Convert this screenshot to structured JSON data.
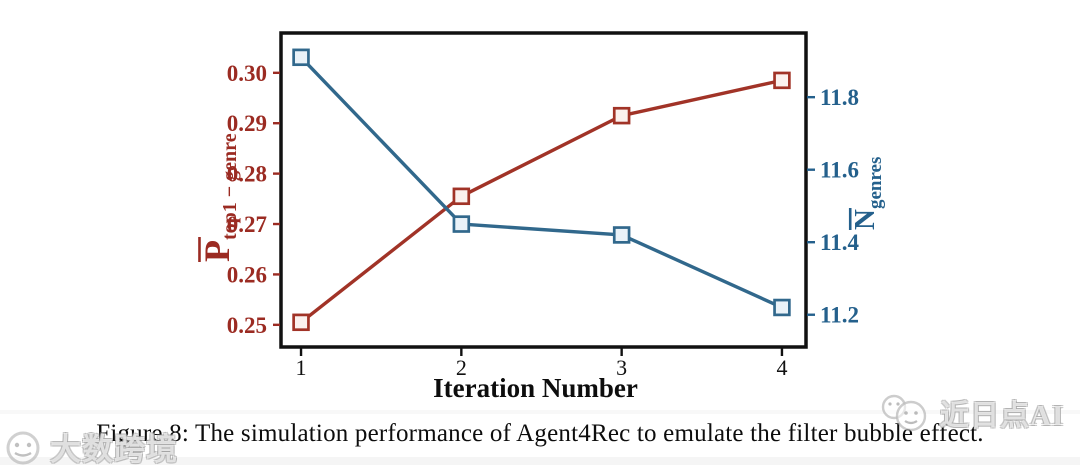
{
  "figure": {
    "caption": "Figure 8: The simulation performance of Agent4Rec to emulate the filter bubble effect."
  },
  "watermarks": {
    "left": {
      "text": "大数跨境",
      "logo": "camera-circle-logo-icon"
    },
    "right": {
      "text": "近日点AI",
      "logo": "double-smiley-faces-icon"
    }
  },
  "chart_data": {
    "type": "line",
    "x": [
      1,
      2,
      3,
      4
    ],
    "x_tick_labels": [
      "1",
      "2",
      "3",
      "4"
    ],
    "xlabel": "Iteration Number",
    "xlim": [
      0.875,
      4.15
    ],
    "grid": false,
    "legend": "none",
    "series": [
      {
        "name": "P̄_top1−genre",
        "axis": "left",
        "values": [
          0.2505,
          0.2755,
          0.2915,
          0.2985
        ],
        "color": "#A13327",
        "marker": "open-square",
        "marker_fill": "#FBF1EE"
      },
      {
        "name": "N̄_genres",
        "axis": "right",
        "values": [
          11.91,
          11.45,
          11.42,
          11.22
        ],
        "color": "#31688C",
        "marker": "open-square",
        "marker_fill": "#EAF2F8"
      }
    ],
    "left_axis": {
      "label_main": "P",
      "label_overline": true,
      "label_subscript": "top1 − genre",
      "ticks": [
        0.25,
        0.26,
        0.27,
        0.28,
        0.29,
        0.3
      ],
      "tick_labels": [
        "0.25",
        "0.26",
        "0.27",
        "0.28",
        "0.29",
        "0.30"
      ],
      "ylim": [
        0.2456,
        0.3079
      ],
      "color": "#9B2B22"
    },
    "right_axis": {
      "label_main": "N",
      "label_overline": true,
      "label_subscript": "genres",
      "ticks": [
        11.2,
        11.4,
        11.6,
        11.8
      ],
      "tick_labels": [
        "11.2",
        "11.4",
        "11.6",
        "11.8"
      ],
      "ylim": [
        11.111,
        11.977
      ],
      "color": "#24608C"
    },
    "axis_color": "#111111"
  }
}
